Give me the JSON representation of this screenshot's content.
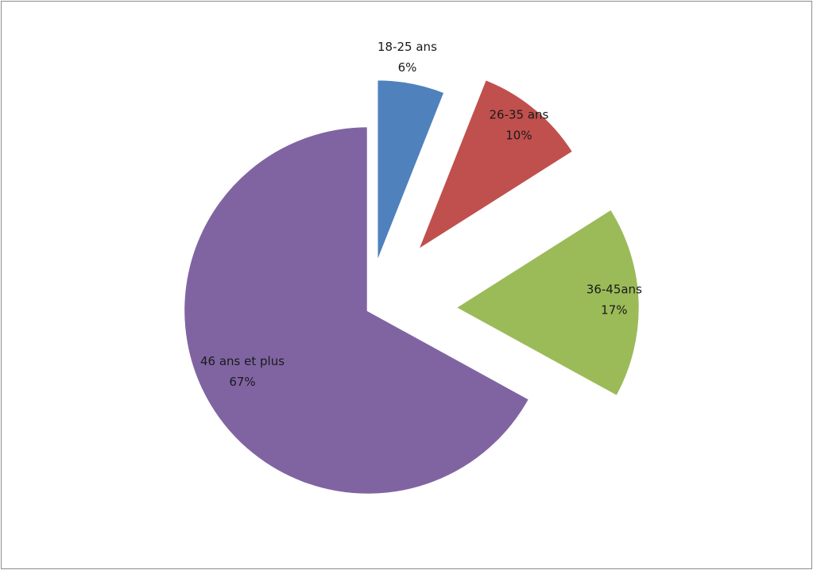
{
  "chart_data": {
    "type": "pie",
    "title": "",
    "exploded": true,
    "start": "12 o'clock, clockwise",
    "slices": [
      {
        "label": "18-25 ans",
        "percent_label": "6%",
        "value": 6,
        "color": "#4f81bd",
        "exploded": true
      },
      {
        "label": "26-35 ans",
        "percent_label": "10%",
        "value": 10,
        "color": "#c0504d",
        "exploded": true
      },
      {
        "label": "36-45ans",
        "percent_label": "17%",
        "value": 17,
        "color": "#9bbb59",
        "exploded": true
      },
      {
        "label": "46 ans et plus",
        "percent_label": "67%",
        "value": 67,
        "color": "#8064a2",
        "exploded": false
      }
    ]
  }
}
